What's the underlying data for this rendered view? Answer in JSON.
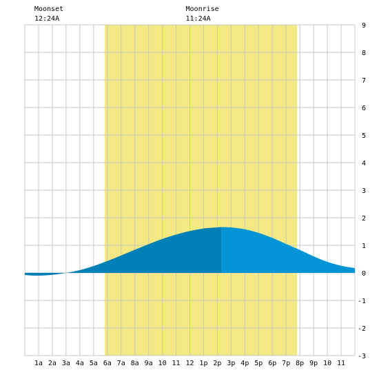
{
  "chart_data": {
    "type": "area",
    "title": "",
    "xlabel": "",
    "ylabel": "",
    "x_unit": "hour of day",
    "x_tick_labels": [
      "1a",
      "2a",
      "3a",
      "4a",
      "5a",
      "6a",
      "7a",
      "8a",
      "9a",
      "10",
      "11",
      "12",
      "1p",
      "2p",
      "3p",
      "4p",
      "5p",
      "6p",
      "7p",
      "8p",
      "9p",
      "10",
      "11"
    ],
    "y_ticks": [
      -3,
      -2,
      -1,
      0,
      1,
      2,
      3,
      4,
      5,
      6,
      7,
      8,
      9
    ],
    "xlim": [
      0,
      24
    ],
    "ylim": [
      -3,
      9
    ],
    "grid": true,
    "daylight": {
      "start_hour": 5.8,
      "end_hour": 19.8
    },
    "moon_events": [
      {
        "label": "Moonset",
        "time": "12:24A",
        "hour": 0.4
      },
      {
        "label": "Moonrise",
        "time": "11:24A",
        "hour": 11.4
      }
    ],
    "tide_shading_split_hour": 14.3,
    "series": [
      {
        "x": [
          0,
          1,
          2,
          3,
          4,
          5,
          6,
          7,
          8,
          9,
          10,
          11,
          12,
          13,
          14,
          14.3,
          15,
          16,
          17,
          18,
          19,
          20,
          21,
          22,
          23,
          24
        ],
        "values": [
          -0.08,
          -0.1,
          -0.07,
          0.0,
          0.1,
          0.25,
          0.43,
          0.63,
          0.84,
          1.04,
          1.23,
          1.39,
          1.52,
          1.61,
          1.65,
          1.66,
          1.65,
          1.58,
          1.45,
          1.27,
          1.05,
          0.83,
          0.6,
          0.4,
          0.26,
          0.17
        ]
      }
    ],
    "colors": {
      "daylight": "#f2e884",
      "tide_before_split": "#0180b8",
      "tide_after_split": "#0394d6",
      "grid": "#c8c8c8",
      "background": "#ffffff"
    }
  }
}
